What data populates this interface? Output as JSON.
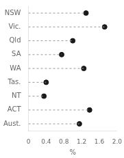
{
  "chart_data": {
    "type": "dot",
    "categories": [
      "NSW",
      "Vic.",
      "Qld",
      "SA",
      "WA",
      "Tas.",
      "NT",
      "ACT",
      "Aust."
    ],
    "values": [
      1.3,
      1.72,
      1.0,
      0.75,
      1.25,
      0.4,
      0.35,
      1.38,
      1.15
    ],
    "xlim": [
      0,
      2.0
    ],
    "xticks": [
      0,
      0.4,
      0.8,
      1.2,
      1.6,
      {
        "value": 2.0,
        "label": "2.0"
      }
    ],
    "xlabel": "%",
    "color": "#1a1a1a",
    "line_style": "dashed",
    "grid": false
  }
}
